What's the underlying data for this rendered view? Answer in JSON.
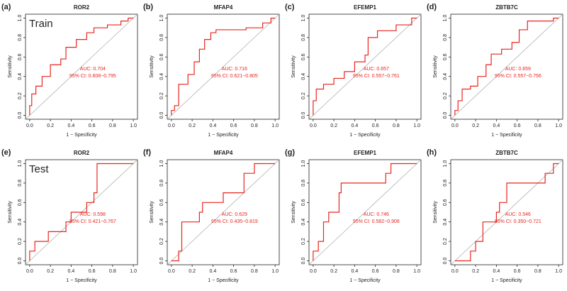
{
  "chart_data": [
    {
      "type": "line",
      "panel_label": "(a)",
      "title": "ROR2",
      "set_label": "Train",
      "xlabel": "1 − Specificity",
      "ylabel": "Sensitivity",
      "auc_text": "AUC: 0.704",
      "ci_text": "95% CI: 0.608−0.795",
      "xlim": [
        -0.04,
        1.04
      ],
      "ylim": [
        -0.04,
        1.04
      ],
      "xticks": [
        {
          "value": 0,
          "label": "0.0"
        },
        0.2,
        0.4,
        0.6,
        0.8,
        {
          "value": 1,
          "label": "1.0"
        }
      ],
      "yticks": [
        {
          "value": 0,
          "label": "0.0"
        },
        0.2,
        0.4,
        0.6,
        0.8,
        {
          "value": 1,
          "label": "1.0"
        }
      ],
      "diagonal_color": "#b0b0b0",
      "x": [
        0,
        0,
        0.02,
        0.02,
        0.06,
        0.06,
        0.12,
        0.12,
        0.2,
        0.2,
        0.3,
        0.3,
        0.35,
        0.35,
        0.45,
        0.45,
        0.55,
        0.55,
        0.62,
        0.62,
        0.75,
        0.75,
        0.88,
        0.88,
        0.95,
        0.95,
        1
      ],
      "series": [
        {
          "color": "#e8261f",
          "values": [
            0,
            0.1,
            0.1,
            0.22,
            0.22,
            0.3,
            0.3,
            0.4,
            0.4,
            0.52,
            0.52,
            0.58,
            0.58,
            0.7,
            0.7,
            0.78,
            0.78,
            0.85,
            0.85,
            0.9,
            0.9,
            0.93,
            0.93,
            0.97,
            0.97,
            1,
            1
          ]
        }
      ]
    },
    {
      "type": "line",
      "panel_label": "(b)",
      "title": "MFAP4",
      "xlabel": "1 − Specificity",
      "ylabel": "Sensitivity",
      "auc_text": "AUC: 0.716",
      "ci_text": "95% CI: 0.621−0.805",
      "xlim": [
        -0.04,
        1.04
      ],
      "ylim": [
        -0.04,
        1.04
      ],
      "xticks": [
        {
          "value": 0,
          "label": "0.0"
        },
        0.2,
        0.4,
        0.6,
        0.8,
        {
          "value": 1,
          "label": "1.0"
        }
      ],
      "yticks": [
        {
          "value": 0,
          "label": "0.0"
        },
        0.2,
        0.4,
        0.6,
        0.8,
        {
          "value": 1,
          "label": "1.0"
        }
      ],
      "diagonal_color": "#b0b0b0",
      "x": [
        0,
        0,
        0.03,
        0.03,
        0.07,
        0.07,
        0.16,
        0.16,
        0.22,
        0.22,
        0.27,
        0.27,
        0.32,
        0.32,
        0.38,
        0.38,
        0.43,
        0.43,
        0.72,
        0.72,
        0.88,
        0.88,
        0.96,
        0.96,
        1
      ],
      "series": [
        {
          "color": "#e8261f",
          "values": [
            0,
            0.05,
            0.05,
            0.1,
            0.1,
            0.32,
            0.32,
            0.42,
            0.42,
            0.55,
            0.55,
            0.68,
            0.68,
            0.78,
            0.78,
            0.85,
            0.85,
            0.88,
            0.88,
            0.9,
            0.9,
            0.95,
            0.95,
            1,
            1
          ]
        }
      ]
    },
    {
      "type": "line",
      "panel_label": "(c)",
      "title": "EFEMP1",
      "xlabel": "1 − Specificity",
      "ylabel": "Sensitivity",
      "auc_text": "AUC: 0.657",
      "ci_text": "95% CI: 0.557−0.761",
      "xlim": [
        -0.04,
        1.04
      ],
      "ylim": [
        -0.04,
        1.04
      ],
      "xticks": [
        {
          "value": 0,
          "label": "0.0"
        },
        0.2,
        0.4,
        0.6,
        0.8,
        {
          "value": 1,
          "label": "1.0"
        }
      ],
      "yticks": [
        {
          "value": 0,
          "label": "0.0"
        },
        0.2,
        0.4,
        0.6,
        0.8,
        {
          "value": 1,
          "label": "1.0"
        }
      ],
      "diagonal_color": "#b0b0b0",
      "x": [
        0,
        0,
        0.03,
        0.03,
        0.1,
        0.1,
        0.2,
        0.2,
        0.3,
        0.3,
        0.4,
        0.4,
        0.5,
        0.5,
        0.53,
        0.53,
        0.62,
        0.62,
        0.8,
        0.8,
        0.95,
        0.95,
        1
      ],
      "series": [
        {
          "color": "#e8261f",
          "values": [
            0,
            0.15,
            0.15,
            0.27,
            0.27,
            0.32,
            0.32,
            0.38,
            0.38,
            0.45,
            0.45,
            0.55,
            0.55,
            0.62,
            0.62,
            0.8,
            0.8,
            0.87,
            0.87,
            0.93,
            0.93,
            1,
            1
          ]
        }
      ]
    },
    {
      "type": "line",
      "panel_label": "(d)",
      "title": "ZBTB7C",
      "xlabel": "1 − Specificity",
      "ylabel": "Sensitivity",
      "auc_text": "AUC: 0.659",
      "ci_text": "95% CI: 0.557−0.756",
      "xlim": [
        -0.04,
        1.04
      ],
      "ylim": [
        -0.04,
        1.04
      ],
      "xticks": [
        {
          "value": 0,
          "label": "0.0"
        },
        0.2,
        0.4,
        0.6,
        0.8,
        {
          "value": 1,
          "label": "1.0"
        }
      ],
      "yticks": [
        {
          "value": 0,
          "label": "0.0"
        },
        0.2,
        0.4,
        0.6,
        0.8,
        {
          "value": 1,
          "label": "1.0"
        }
      ],
      "diagonal_color": "#b0b0b0",
      "x": [
        0,
        0,
        0.03,
        0.03,
        0.07,
        0.07,
        0.15,
        0.15,
        0.22,
        0.22,
        0.3,
        0.3,
        0.35,
        0.35,
        0.45,
        0.45,
        0.55,
        0.55,
        0.62,
        0.62,
        0.7,
        0.7,
        0.95,
        0.95,
        1
      ],
      "series": [
        {
          "color": "#e8261f",
          "values": [
            0,
            0.05,
            0.05,
            0.15,
            0.15,
            0.27,
            0.27,
            0.3,
            0.3,
            0.4,
            0.4,
            0.52,
            0.52,
            0.63,
            0.63,
            0.68,
            0.68,
            0.75,
            0.75,
            0.88,
            0.88,
            0.97,
            0.97,
            1,
            1
          ]
        }
      ]
    },
    {
      "type": "line",
      "panel_label": "(e)",
      "title": "ROR2",
      "set_label": "Test",
      "xlabel": "1 − Specificity",
      "ylabel": "Sensitivity",
      "auc_text": "AUC: 0.598",
      "ci_text": "95% CI: 0.421−0.767",
      "xlim": [
        -0.04,
        1.04
      ],
      "ylim": [
        -0.04,
        1.04
      ],
      "xticks": [
        {
          "value": 0,
          "label": "0.0"
        },
        0.2,
        0.4,
        0.6,
        0.8,
        {
          "value": 1,
          "label": "1.0"
        }
      ],
      "yticks": [
        {
          "value": 0,
          "label": "0.0"
        },
        0.2,
        0.4,
        0.6,
        0.8,
        {
          "value": 1,
          "label": "1.0"
        }
      ],
      "diagonal_color": "#b0b0b0",
      "x": [
        0,
        0,
        0.05,
        0.05,
        0.18,
        0.18,
        0.35,
        0.35,
        0.4,
        0.4,
        0.55,
        0.55,
        0.62,
        0.62,
        0.65,
        0.65,
        1
      ],
      "series": [
        {
          "color": "#e8261f",
          "values": [
            0,
            0.1,
            0.1,
            0.2,
            0.2,
            0.3,
            0.3,
            0.4,
            0.4,
            0.5,
            0.5,
            0.6,
            0.6,
            0.7,
            0.7,
            1,
            1
          ]
        }
      ]
    },
    {
      "type": "line",
      "panel_label": "(f)",
      "title": "MFAP4",
      "xlabel": "1 − Specificity",
      "ylabel": "Sensitivity",
      "auc_text": "AUC: 0.629",
      "ci_text": "95% CI: 0.435−0.819",
      "xlim": [
        -0.04,
        1.04
      ],
      "ylim": [
        -0.04,
        1.04
      ],
      "xticks": [
        {
          "value": 0,
          "label": "0.0"
        },
        0.2,
        0.4,
        0.6,
        0.8,
        {
          "value": 1,
          "label": "1.0"
        }
      ],
      "yticks": [
        {
          "value": 0,
          "label": "0.0"
        },
        0.2,
        0.4,
        0.6,
        0.8,
        {
          "value": 1,
          "label": "1.0"
        }
      ],
      "diagonal_color": "#b0b0b0",
      "x": [
        0,
        0.07,
        0.07,
        0.1,
        0.1,
        0.27,
        0.27,
        0.3,
        0.3,
        0.5,
        0.5,
        0.7,
        0.7,
        0.8,
        0.8,
        1
      ],
      "series": [
        {
          "color": "#e8261f",
          "values": [
            0,
            0,
            0.1,
            0.1,
            0.4,
            0.4,
            0.5,
            0.5,
            0.6,
            0.6,
            0.7,
            0.7,
            0.9,
            0.9,
            1,
            1
          ]
        }
      ]
    },
    {
      "type": "line",
      "panel_label": "(g)",
      "title": "EFEMP1",
      "xlabel": "1 − Specificity",
      "ylabel": "Sensitivity",
      "auc_text": "AUC: 0.746",
      "ci_text": "95% CI: 0.582−0.906",
      "xlim": [
        -0.04,
        1.04
      ],
      "ylim": [
        -0.04,
        1.04
      ],
      "xticks": [
        {
          "value": 0,
          "label": "0.0"
        },
        0.2,
        0.4,
        0.6,
        0.8,
        {
          "value": 1,
          "label": "1.0"
        }
      ],
      "yticks": [
        {
          "value": 0,
          "label": "0.0"
        },
        0.2,
        0.4,
        0.6,
        0.8,
        {
          "value": 1,
          "label": "1.0"
        }
      ],
      "diagonal_color": "#b0b0b0",
      "x": [
        0,
        0,
        0.05,
        0.05,
        0.1,
        0.1,
        0.15,
        0.15,
        0.25,
        0.25,
        0.27,
        0.27,
        0.7,
        0.7,
        0.75,
        0.75,
        1
      ],
      "series": [
        {
          "color": "#e8261f",
          "values": [
            0,
            0.1,
            0.1,
            0.2,
            0.2,
            0.4,
            0.4,
            0.5,
            0.5,
            0.7,
            0.7,
            0.8,
            0.8,
            0.9,
            0.9,
            1,
            1
          ]
        }
      ]
    },
    {
      "type": "line",
      "panel_label": "(h)",
      "title": "ZBTB7C",
      "xlabel": "1 − Specificity",
      "ylabel": "Sensitivity",
      "auc_text": "AUC: 0.546",
      "ci_text": "95% CI: 0.350−0.721",
      "xlim": [
        -0.04,
        1.04
      ],
      "ylim": [
        -0.04,
        1.04
      ],
      "xticks": [
        {
          "value": 0,
          "label": "0.0"
        },
        0.2,
        0.4,
        0.6,
        0.8,
        {
          "value": 1,
          "label": "1.0"
        }
      ],
      "yticks": [
        {
          "value": 0,
          "label": "0.0"
        },
        0.2,
        0.4,
        0.6,
        0.8,
        {
          "value": 1,
          "label": "1.0"
        }
      ],
      "diagonal_color": "#b0b0b0",
      "x": [
        0,
        0.15,
        0.15,
        0.2,
        0.2,
        0.27,
        0.27,
        0.4,
        0.4,
        0.43,
        0.43,
        0.5,
        0.5,
        0.87,
        0.87,
        0.95,
        0.95,
        1
      ],
      "series": [
        {
          "color": "#e8261f",
          "values": [
            0,
            0,
            0.1,
            0.1,
            0.2,
            0.2,
            0.4,
            0.4,
            0.5,
            0.5,
            0.6,
            0.6,
            0.8,
            0.8,
            0.9,
            0.9,
            1,
            1
          ]
        }
      ]
    }
  ]
}
